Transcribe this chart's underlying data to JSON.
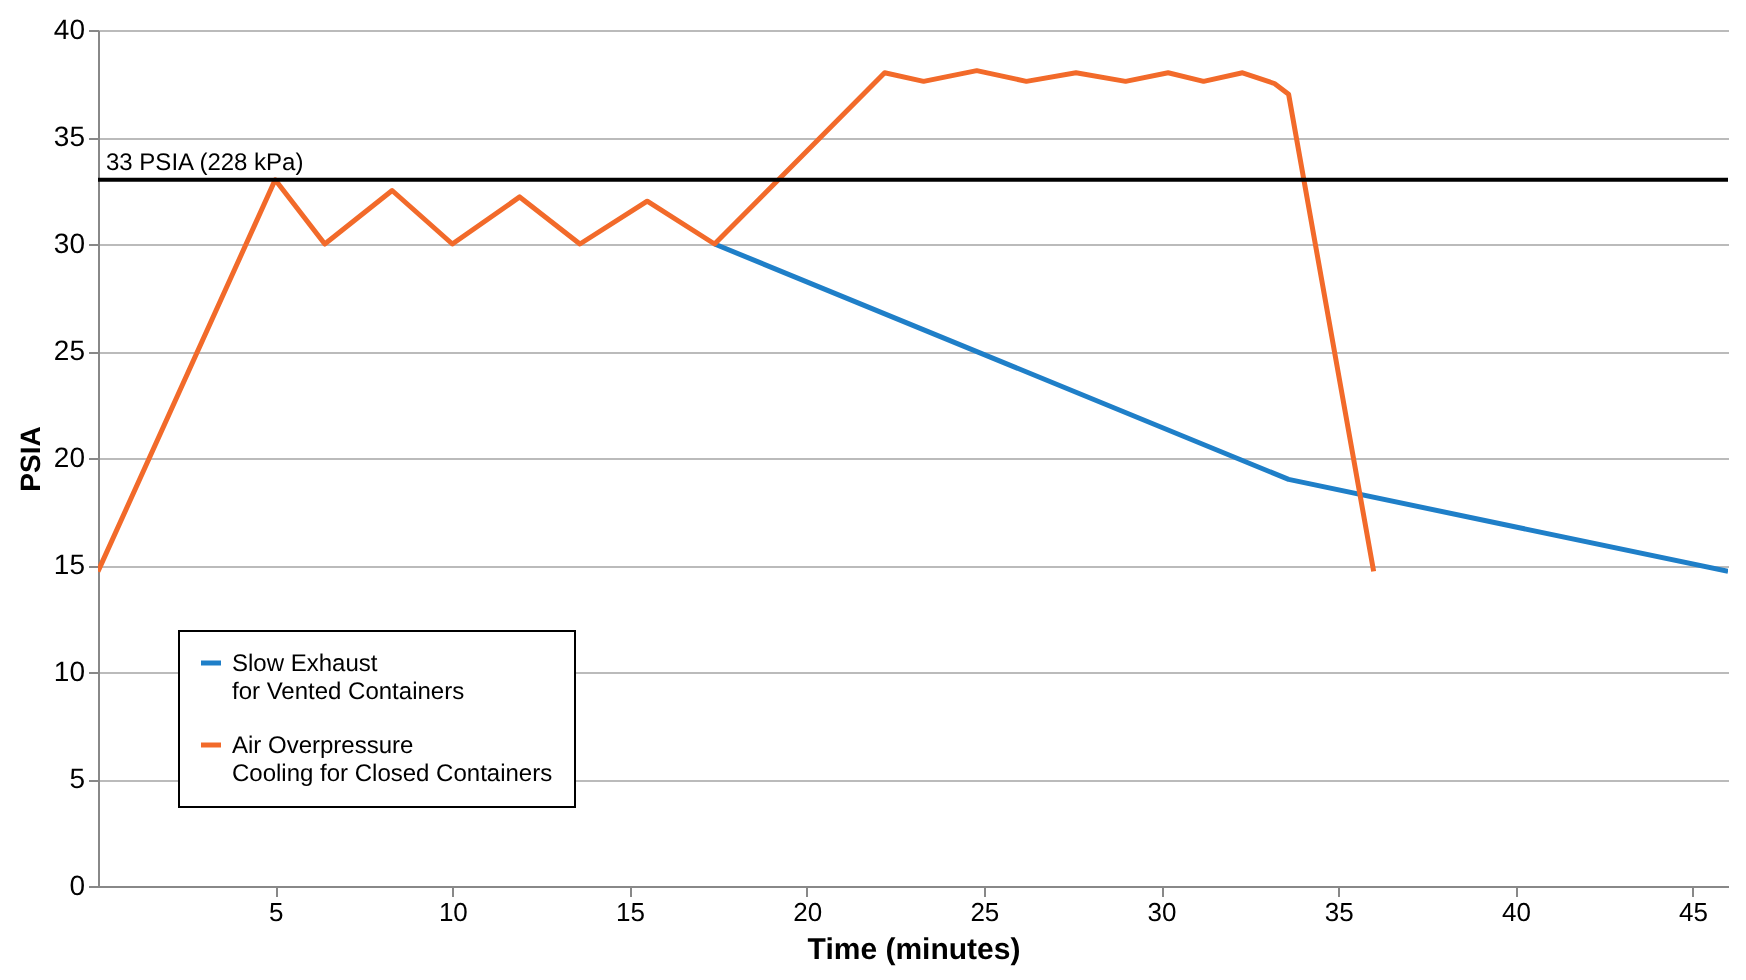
{
  "chart_data": {
    "type": "line",
    "xlabel": "Time (minutes)",
    "ylabel": "PSIA",
    "xlim": [
      0,
      46
    ],
    "ylim": [
      0,
      40
    ],
    "xticks": [
      5,
      10,
      15,
      20,
      25,
      30,
      35,
      40,
      45
    ],
    "yticks": [
      0,
      5,
      10,
      15,
      20,
      25,
      30,
      35,
      40
    ],
    "grid": "y",
    "legend": "bottom left",
    "line_style": "solid",
    "marker": "none",
    "series": [
      {
        "name": "Slow Exhaust for Vented Containers",
        "color": "#1f7fc8",
        "x": [
          17.4,
          33.6,
          46
        ],
        "values": [
          30,
          19,
          14.7
        ]
      },
      {
        "name": "Air Overpressure Cooling for Closed Containers",
        "color": "#f26a2a",
        "x": [
          0,
          5,
          6.4,
          8.3,
          10,
          11.9,
          13.6,
          15.5,
          17.4,
          22.2,
          23.3,
          24.8,
          26.2,
          27.6,
          29,
          30.2,
          31.2,
          32.3,
          33.2,
          33.6,
          36
        ],
        "values": [
          14.7,
          33,
          30,
          32.5,
          30,
          32.2,
          30,
          32,
          30,
          38,
          37.6,
          38.1,
          37.6,
          38,
          37.6,
          38,
          37.6,
          38,
          37.5,
          37,
          14.7
        ]
      }
    ],
    "ref_lines": [
      {
        "axis": "y",
        "value": 33,
        "label": "33 PSIA (228 kPa)",
        "color": "#000000"
      }
    ]
  }
}
